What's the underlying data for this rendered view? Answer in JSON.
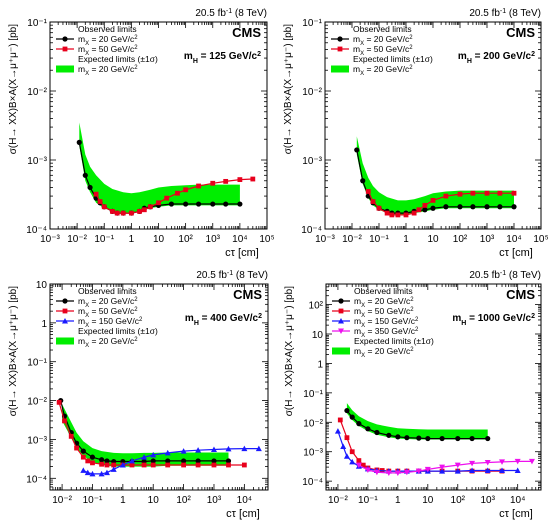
{
  "figure": {
    "experiment": "CMS",
    "luminosity": "20.5 fb",
    "luminosity_sup": "-1",
    "energy": "(8 TeV)",
    "xlabel": "cτ [cm]",
    "ylabel": "σ(H→ XX)B×A(X→μ⁺μ⁻) [pb]",
    "colors": {
      "band": "#00ee00",
      "mx20": "#000000",
      "mx50": "#e8001c",
      "mx150": "#1a1aff",
      "mx350": "#ee11ee"
    }
  },
  "chart_data": [
    {
      "type": "line",
      "panel": "top-left",
      "title": "m_H = 125 GeV/c²",
      "xlabel": "cτ [cm]",
      "ylabel": "σ(H→ XX)B×A(X→μ⁺μ⁻) [pb]",
      "xscale": "log",
      "yscale": "log",
      "xlim": [
        0.001,
        100000
      ],
      "ylim": [
        0.0001,
        0.1
      ],
      "legend_position": "top-left",
      "legend": [
        "Observed limits",
        "m_X = 20 GeV/c²",
        "m_X = 50 GeV/c²",
        "Expected limits (±1σ)",
        "m_X = 20 GeV/c²"
      ],
      "series": [
        {
          "name": "m_X = 20 GeV/c²",
          "kind": "observed",
          "marker": "circle",
          "color": "#000000",
          "x": [
            0.012,
            0.02,
            0.03,
            0.05,
            0.07,
            0.1,
            0.2,
            0.3,
            0.5,
            1,
            2,
            3,
            5,
            10,
            30,
            100,
            300,
            1000,
            3000,
            10000
          ],
          "y": [
            0.0018,
            0.0006,
            0.0004,
            0.00028,
            0.00024,
            0.00021,
            0.00018,
            0.00017,
            0.00017,
            0.00017,
            0.00018,
            0.0002,
            0.00021,
            0.00022,
            0.00023,
            0.00023,
            0.00023,
            0.00023,
            0.00023,
            0.00023
          ]
        },
        {
          "name": "m_X = 50 GeV/c²",
          "kind": "observed",
          "marker": "square",
          "color": "#e8001c",
          "x": [
            0.05,
            0.07,
            0.1,
            0.2,
            0.3,
            0.5,
            1,
            2,
            3,
            5,
            10,
            20,
            50,
            100,
            300,
            1000,
            3000,
            10000,
            30000
          ],
          "y": [
            0.00032,
            0.00025,
            0.00021,
            0.00018,
            0.00017,
            0.00017,
            0.00017,
            0.00018,
            0.00019,
            0.00021,
            0.00024,
            0.00028,
            0.00033,
            0.00037,
            0.00042,
            0.00046,
            0.00049,
            0.00052,
            0.00053
          ]
        },
        {
          "name": "m_X = 20 GeV/c²",
          "kind": "expected ±1σ band",
          "color": "#00ee00",
          "x": [
            0.012,
            0.02,
            0.03,
            0.05,
            0.1,
            0.2,
            0.5,
            1,
            2,
            5,
            10,
            30,
            100,
            300,
            1000,
            3000,
            10000
          ],
          "y_low": [
            0.0016,
            0.0005,
            0.00034,
            0.00024,
            0.0002,
            0.00018,
            0.00017,
            0.00017,
            0.00018,
            0.0002,
            0.00021,
            0.00022,
            0.00022,
            0.00022,
            0.00022,
            0.00022,
            0.00022
          ],
          "y_high": [
            0.0035,
            0.0012,
            0.0008,
            0.0006,
            0.00045,
            0.00038,
            0.00034,
            0.00033,
            0.00034,
            0.00037,
            0.0004,
            0.00042,
            0.00043,
            0.00044,
            0.00044,
            0.00044,
            0.00044
          ]
        }
      ]
    },
    {
      "type": "line",
      "panel": "top-right",
      "title": "m_H = 200 GeV/c²",
      "xlabel": "cτ [cm]",
      "ylabel": "σ(H→ XX)B×A(X→μ⁺μ⁻) [pb]",
      "xscale": "log",
      "yscale": "log",
      "xlim": [
        0.001,
        100000
      ],
      "ylim": [
        0.0001,
        0.1
      ],
      "legend_position": "top-left",
      "legend": [
        "Observed limits",
        "m_X = 20 GeV/c²",
        "m_X = 50 GeV/c²",
        "Expected limits (±1σ)",
        "m_X = 20 GeV/c²"
      ],
      "series": [
        {
          "name": "m_X = 20 GeV/c²",
          "kind": "observed",
          "marker": "circle",
          "color": "#000000",
          "x": [
            0.015,
            0.025,
            0.04,
            0.06,
            0.1,
            0.2,
            0.3,
            0.5,
            1,
            2,
            5,
            10,
            30,
            100,
            300,
            1000,
            3000,
            10000
          ],
          "y": [
            0.0014,
            0.0005,
            0.0003,
            0.00024,
            0.0002,
            0.00018,
            0.00017,
            0.00017,
            0.00017,
            0.00018,
            0.00019,
            0.0002,
            0.00021,
            0.00021,
            0.00021,
            0.00021,
            0.00021,
            0.00021
          ]
        },
        {
          "name": "m_X = 50 GeV/c²",
          "kind": "observed",
          "marker": "square",
          "color": "#e8001c",
          "x": [
            0.04,
            0.06,
            0.1,
            0.2,
            0.3,
            0.5,
            1,
            2,
            3,
            5,
            10,
            30,
            100,
            300,
            1000,
            3000,
            10000
          ],
          "y": [
            0.00035,
            0.00025,
            0.0002,
            0.00017,
            0.00016,
            0.00016,
            0.00016,
            0.00017,
            0.00019,
            0.00022,
            0.00026,
            0.0003,
            0.00032,
            0.00033,
            0.00033,
            0.00033,
            0.00033
          ]
        },
        {
          "name": "m_X = 20 GeV/c²",
          "kind": "expected ±1σ band",
          "color": "#00ee00",
          "x": [
            0.015,
            0.025,
            0.04,
            0.06,
            0.1,
            0.2,
            0.5,
            1,
            2,
            5,
            10,
            30,
            100,
            300,
            1000,
            3000,
            10000
          ],
          "y_low": [
            0.0012,
            0.00045,
            0.00028,
            0.00022,
            0.00019,
            0.00017,
            0.00016,
            0.00016,
            0.00017,
            0.00018,
            0.00019,
            0.0002,
            0.0002,
            0.0002,
            0.0002,
            0.0002,
            0.0002
          ],
          "y_high": [
            0.0022,
            0.0009,
            0.00055,
            0.00042,
            0.00034,
            0.00029,
            0.00026,
            0.00026,
            0.00027,
            0.0003,
            0.00033,
            0.00035,
            0.00036,
            0.00036,
            0.00036,
            0.00036,
            0.00036
          ]
        }
      ]
    },
    {
      "type": "line",
      "panel": "bottom-left",
      "title": "m_H = 400 GeV/c²",
      "xlabel": "cτ [cm]",
      "ylabel": "σ(H→ XX)B×A(X→μ⁺μ⁻) [pb]",
      "xscale": "log",
      "yscale": "log",
      "xlim": [
        0.004,
        60000
      ],
      "ylim": [
        5e-05,
        10
      ],
      "legend_position": "top-left",
      "legend": [
        "Observed limits",
        "m_X = 20 GeV/c²",
        "m_X = 50 GeV/c²",
        "m_X = 150 GeV/c²",
        "Expected limits (±1σ)",
        "m_X = 20 GeV/c²"
      ],
      "series": [
        {
          "name": "m_X = 20 GeV/c²",
          "kind": "observed",
          "marker": "circle",
          "color": "#000000",
          "x": [
            0.009,
            0.012,
            0.02,
            0.03,
            0.05,
            0.1,
            0.2,
            0.3,
            0.5,
            1,
            2,
            5,
            10,
            30,
            100,
            300,
            1000,
            3000
          ],
          "y": [
            0.01,
            0.004,
            0.0015,
            0.0008,
            0.0005,
            0.00035,
            0.0003,
            0.00028,
            0.00027,
            0.00027,
            0.00027,
            0.00027,
            0.00028,
            0.00028,
            0.00028,
            0.00028,
            0.00028,
            0.00028
          ]
        },
        {
          "name": "m_X = 50 GeV/c²",
          "kind": "observed",
          "marker": "square",
          "color": "#e8001c",
          "x": [
            0.008,
            0.012,
            0.02,
            0.03,
            0.05,
            0.07,
            0.1,
            0.2,
            0.3,
            0.5,
            1,
            2,
            5,
            10,
            30,
            100,
            300,
            1000,
            3000,
            10000
          ],
          "y": [
            0.009,
            0.003,
            0.0012,
            0.0006,
            0.00035,
            0.00028,
            0.00025,
            0.00023,
            0.00022,
            0.00022,
            0.00022,
            0.00022,
            0.00022,
            0.00022,
            0.00022,
            0.00022,
            0.00022,
            0.00022,
            0.00022,
            0.00022
          ]
        },
        {
          "name": "m_X = 150 GeV/c²",
          "kind": "observed",
          "marker": "triangle-up",
          "color": "#1a1aff",
          "x": [
            0.05,
            0.07,
            0.1,
            0.2,
            0.3,
            0.5,
            1,
            2,
            5,
            10,
            30,
            100,
            300,
            1000,
            3000,
            10000,
            30000
          ],
          "y": [
            0.00016,
            0.00014,
            0.00013,
            0.00013,
            0.00014,
            0.00017,
            0.00022,
            0.00028,
            0.00035,
            0.0004,
            0.00045,
            0.0005,
            0.00053,
            0.00055,
            0.00057,
            0.00058,
            0.00058
          ]
        },
        {
          "name": "m_X = 20 GeV/c²",
          "kind": "expected ±1σ band",
          "color": "#00ee00",
          "x": [
            0.01,
            0.02,
            0.03,
            0.05,
            0.1,
            0.2,
            0.5,
            1,
            2,
            5,
            10,
            30,
            100,
            300,
            1000,
            3000
          ],
          "y_low": [
            0.003,
            0.0011,
            0.0006,
            0.00038,
            0.00026,
            0.00022,
            0.0002,
            0.0002,
            0.0002,
            0.0002,
            0.0002,
            0.00021,
            0.00021,
            0.00021,
            0.00021,
            0.00021
          ],
          "y_high": [
            0.008,
            0.0028,
            0.0015,
            0.0009,
            0.0006,
            0.0005,
            0.00045,
            0.00044,
            0.00044,
            0.00045,
            0.00045,
            0.00046,
            0.00046,
            0.00046,
            0.00046,
            0.00046
          ]
        }
      ]
    },
    {
      "type": "line",
      "panel": "bottom-right",
      "title": "m_H = 1000 GeV/c²",
      "xlabel": "cτ [cm]",
      "ylabel": "σ(H→ XX)B×A(X→μ⁺μ⁻) [pb]",
      "xscale": "log",
      "yscale": "log",
      "xlim": [
        0.004,
        60000
      ],
      "ylim": [
        5e-05,
        500
      ],
      "legend_position": "top-left",
      "legend": [
        "Observed limits",
        "m_X = 20 GeV/c²",
        "m_X = 50 GeV/c²",
        "m_X = 150 GeV/c²",
        "m_X = 350 GeV/c²",
        "Expected limits (±1σ)",
        "m_X = 20 GeV/c²"
      ],
      "series": [
        {
          "name": "m_X = 20 GeV/c²",
          "kind": "observed",
          "marker": "circle",
          "color": "#000000",
          "x": [
            0.02,
            0.03,
            0.05,
            0.1,
            0.2,
            0.5,
            1,
            2,
            5,
            10,
            30,
            100,
            300,
            1000
          ],
          "y": [
            0.025,
            0.015,
            0.009,
            0.006,
            0.0045,
            0.0036,
            0.0032,
            0.003,
            0.0029,
            0.0028,
            0.0028,
            0.0028,
            0.0028,
            0.0028
          ]
        },
        {
          "name": "m_X = 50 GeV/c²",
          "kind": "observed",
          "marker": "square",
          "color": "#e8001c",
          "x": [
            0.012,
            0.02,
            0.03,
            0.05,
            0.07,
            0.1,
            0.2,
            0.3,
            0.5,
            1,
            2,
            5,
            10,
            30,
            100,
            300,
            1000,
            3000
          ],
          "y": [
            0.012,
            0.003,
            0.001,
            0.0005,
            0.00035,
            0.00028,
            0.00024,
            0.00023,
            0.00022,
            0.00022,
            0.00022,
            0.00022,
            0.00022,
            0.00022,
            0.00022,
            0.00022,
            0.00022,
            0.00022
          ]
        },
        {
          "name": "m_X = 150 GeV/c²",
          "kind": "observed",
          "marker": "triangle-up",
          "color": "#1a1aff",
          "x": [
            0.01,
            0.015,
            0.02,
            0.03,
            0.05,
            0.1,
            0.2,
            0.5,
            1,
            2,
            5,
            10,
            30,
            100,
            300,
            1000,
            3000,
            10000
          ],
          "y": [
            0.005,
            0.0015,
            0.0007,
            0.00045,
            0.00032,
            0.00026,
            0.00023,
            0.00022,
            0.00022,
            0.00022,
            0.00022,
            0.00022,
            0.00022,
            0.00022,
            0.00023,
            0.00023,
            0.00023,
            0.00023
          ]
        },
        {
          "name": "m_X = 350 GeV/c²",
          "kind": "observed",
          "marker": "triangle-down",
          "color": "#ee11ee",
          "x": [
            0.05,
            0.1,
            0.2,
            0.5,
            1,
            2,
            5,
            10,
            30,
            100,
            300,
            1000,
            3000,
            10000,
            30000
          ],
          "y": [
            0.00035,
            0.00024,
            0.0002,
            0.00019,
            0.00019,
            0.0002,
            0.00022,
            0.00025,
            0.0003,
            0.00035,
            0.0004,
            0.00043,
            0.00045,
            0.00047,
            0.00047
          ]
        },
        {
          "name": "m_X = 20 GeV/c²",
          "kind": "expected ±1σ band",
          "color": "#00ee00",
          "x": [
            0.02,
            0.03,
            0.05,
            0.1,
            0.2,
            0.5,
            1,
            2,
            5,
            10,
            30,
            100,
            300,
            1000
          ],
          "y_low": [
            0.02,
            0.012,
            0.0075,
            0.005,
            0.0038,
            0.0031,
            0.0028,
            0.0027,
            0.0026,
            0.0026,
            0.0026,
            0.0026,
            0.0026,
            0.0026
          ],
          "y_high": [
            0.045,
            0.026,
            0.016,
            0.011,
            0.0085,
            0.007,
            0.0063,
            0.006,
            0.0058,
            0.0057,
            0.0057,
            0.0057,
            0.0057,
            0.0057
          ]
        }
      ]
    }
  ]
}
